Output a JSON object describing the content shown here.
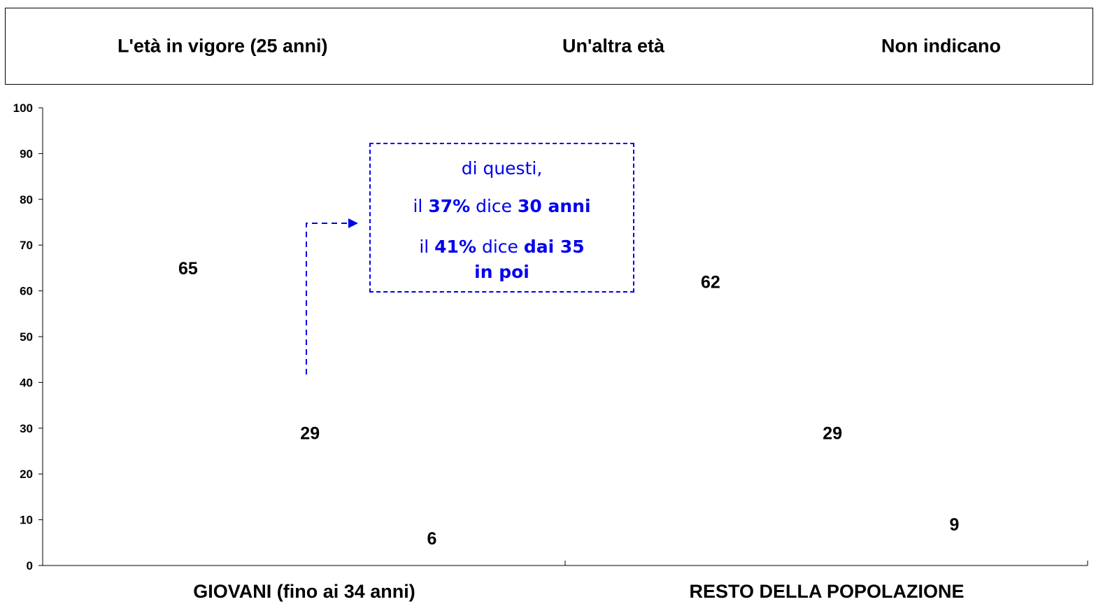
{
  "legend": {
    "items": [
      "L'età in vigore (25 anni)",
      "Un'altra età",
      "Non indicano"
    ]
  },
  "note": {
    "line1": "di questi,",
    "l2_pre": "il ",
    "l2_pct": "37%",
    "l2_mid": " dice ",
    "l2_val": "30 anni",
    "l3_pre": "il ",
    "l3_pct": "41%",
    "l3_mid": " dice ",
    "l3_val": "dai 35",
    "line4": "in poi",
    "color": "#0000ee"
  },
  "chart_data": {
    "type": "bar",
    "categories": [
      "GIOVANI (fino ai 34 anni)",
      "RESTO DELLA POPOLAZIONE"
    ],
    "series": [
      {
        "name": "L'età in vigore (25 anni)",
        "values": [
          65,
          62
        ]
      },
      {
        "name": "Un'altra età",
        "values": [
          29,
          29
        ]
      },
      {
        "name": "Non indicano",
        "values": [
          6,
          9
        ]
      }
    ],
    "ylim": [
      0,
      100
    ],
    "yticks": [
      "0",
      "10",
      "20",
      "30",
      "40",
      "50",
      "60",
      "70",
      "80",
      "90",
      "100"
    ],
    "data_labels": [
      "65",
      "29",
      "6",
      "62",
      "29",
      "9"
    ],
    "grid": false,
    "legend_position": "top"
  }
}
